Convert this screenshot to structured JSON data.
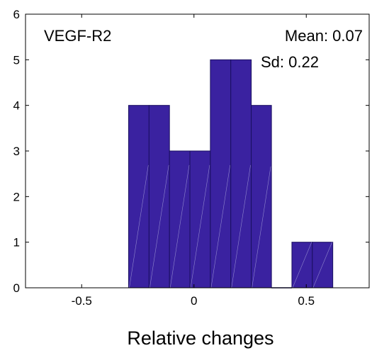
{
  "chart_data": {
    "type": "bar",
    "title": "",
    "xlabel": "Relative changes",
    "ylabel": "",
    "xlim": [
      -0.75,
      0.78
    ],
    "ylim": [
      0,
      6
    ],
    "bin_width": 0.0909,
    "bins": [
      {
        "x0": -0.291,
        "x1": -0.2,
        "value": 4
      },
      {
        "x0": -0.2,
        "x1": -0.109,
        "value": 4
      },
      {
        "x0": -0.109,
        "x1": -0.018,
        "value": 3
      },
      {
        "x0": -0.018,
        "x1": 0.073,
        "value": 3
      },
      {
        "x0": 0.073,
        "x1": 0.164,
        "value": 5
      },
      {
        "x0": 0.164,
        "x1": 0.255,
        "value": 5
      },
      {
        "x0": 0.255,
        "x1": 0.345,
        "value": 4
      },
      {
        "x0": 0.345,
        "x1": 0.436,
        "value": 0
      },
      {
        "x0": 0.436,
        "x1": 0.527,
        "value": 1
      },
      {
        "x0": 0.527,
        "x1": 0.618,
        "value": 1
      }
    ],
    "x_ticks": [
      {
        "value": -0.5,
        "label": "-0.5"
      },
      {
        "value": 0,
        "label": "0"
      },
      {
        "value": 0.5,
        "label": "0.5"
      }
    ],
    "y_ticks": [
      {
        "value": 0,
        "label": "0"
      },
      {
        "value": 1,
        "label": "1"
      },
      {
        "value": 2,
        "label": "2"
      },
      {
        "value": 3,
        "label": "3"
      },
      {
        "value": 4,
        "label": "4"
      },
      {
        "value": 5,
        "label": "5"
      },
      {
        "value": 6,
        "label": "6"
      }
    ],
    "annotations": {
      "name": "VEGF-R2",
      "mean": "Mean: 0.07",
      "sd": "Sd: 0.22"
    },
    "grid": false,
    "bar_color": "#3a22a0",
    "bar_edge_color": "#1a1060"
  }
}
